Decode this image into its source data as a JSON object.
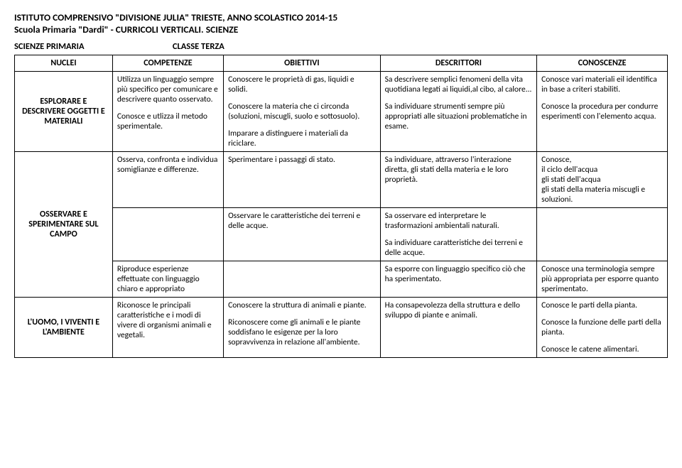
{
  "header": {
    "line1": "ISTITUTO COMPRENSIVO \"DIVISIONE JULIA\" TRIESTE, ANNO SCOLASTICO 2014-15",
    "line2": "Scuola Primaria \"Dardi\" - CURRICOLI VERTICALI. SCIENZE"
  },
  "subheader": {
    "left": "SCIENZE PRIMARIA",
    "right": "CLASSE TERZA"
  },
  "columns": {
    "nuclei": "NUCLEI",
    "competenze": "COMPETENZE",
    "obiettivi": "OBIETTIVI",
    "descrittori": "DESCRITTORI",
    "conoscenze": "CONOSCENZE"
  },
  "row1": {
    "nucleo": "ESPLORARE E DESCRIVERE OGGETTI E MATERIALI",
    "comp_p1": "Utilizza un linguaggio sempre più specifico per comunicare e descrivere quanto osservato.",
    "comp_p2": "Conosce e utlizza il metodo sperimentale.",
    "obj_p1": "Conoscere le proprietà di gas, liquidi e solidi.",
    "obj_p2": "Conoscere la materia che ci circonda (soluzioni, miscugli, suolo e sottosuolo).",
    "obj_p3": "Imparare a distinguere i materiali da riciclare.",
    "desc_p1": "Sa descrivere semplici fenomeni della vita quotidiana legati  ai liquidi,al cibo, al calore...",
    "desc_p2": "Sa individuare strumenti sempre più appropriati alle situazioni problematiche in esame.",
    "cono_p1": "Conosce vari materiali eil identifica in base a criteri stabiliti.",
    "cono_p2": "Conosce la procedura per condurre esperimenti con l'elemento acqua."
  },
  "row2": {
    "nucleo": "OSSERVARE E SPERIMENTARE SUL CAMPO",
    "comp_p1": " Osserva, confronta  e individua somiglianze e differenze.",
    "obj_p1": "Sperimentare i passaggi di stato.",
    "desc_p1": "Sa individuare, attraverso l'interazione diretta, gli stati della materia e le loro proprietà.",
    "cono_p1": "Conosce,",
    "cono_p2": "il ciclo dell'acqua",
    "cono_p3": "gli stati dell'acqua",
    "cono_p4": "gli stati della materia miscugli e soluzioni."
  },
  "row2b": {
    "obj_p1": "Osservare le caratteristiche dei terreni e delle acque.",
    "desc_p1": "Sa osservare ed interpretare le trasformazioni ambientali naturali.",
    "desc_p2": "Sa individuare caratteristiche dei terreni e delle acque."
  },
  "row2c": {
    "comp_p1": "Riproduce esperienze effettuate con linguaggio chiaro e appropriato",
    "desc_p1": "Sa esporre con linguaggio specifico ciò che ha sperimentato.",
    "cono_p1": "Conosce una terminologia sempre più appropriata per esporre quanto sperimentato."
  },
  "row3": {
    "nucleo": "L'UOMO, I VIVENTI E L'AMBIENTE",
    "comp_p1": "Riconosce le principali caratteristiche e i modi di vivere di organismi animali e vegetali.",
    "obj_p1": "Conoscere la struttura di animali e piante.",
    "obj_p2": "Riconoscere come gli animali e le piante soddisfano Ie esigenze per la loro sopravvivenza in relazione all'ambiente.",
    "desc_p1": "Ha consapevolezza della struttura e dello sviluppo di piante e animali.",
    "cono_p1": "Conosce le parti della pianta.",
    "cono_p2": "Conosce la funzione delle parti della pianta.",
    "cono_p3": "Conosce le catene alimentari."
  }
}
